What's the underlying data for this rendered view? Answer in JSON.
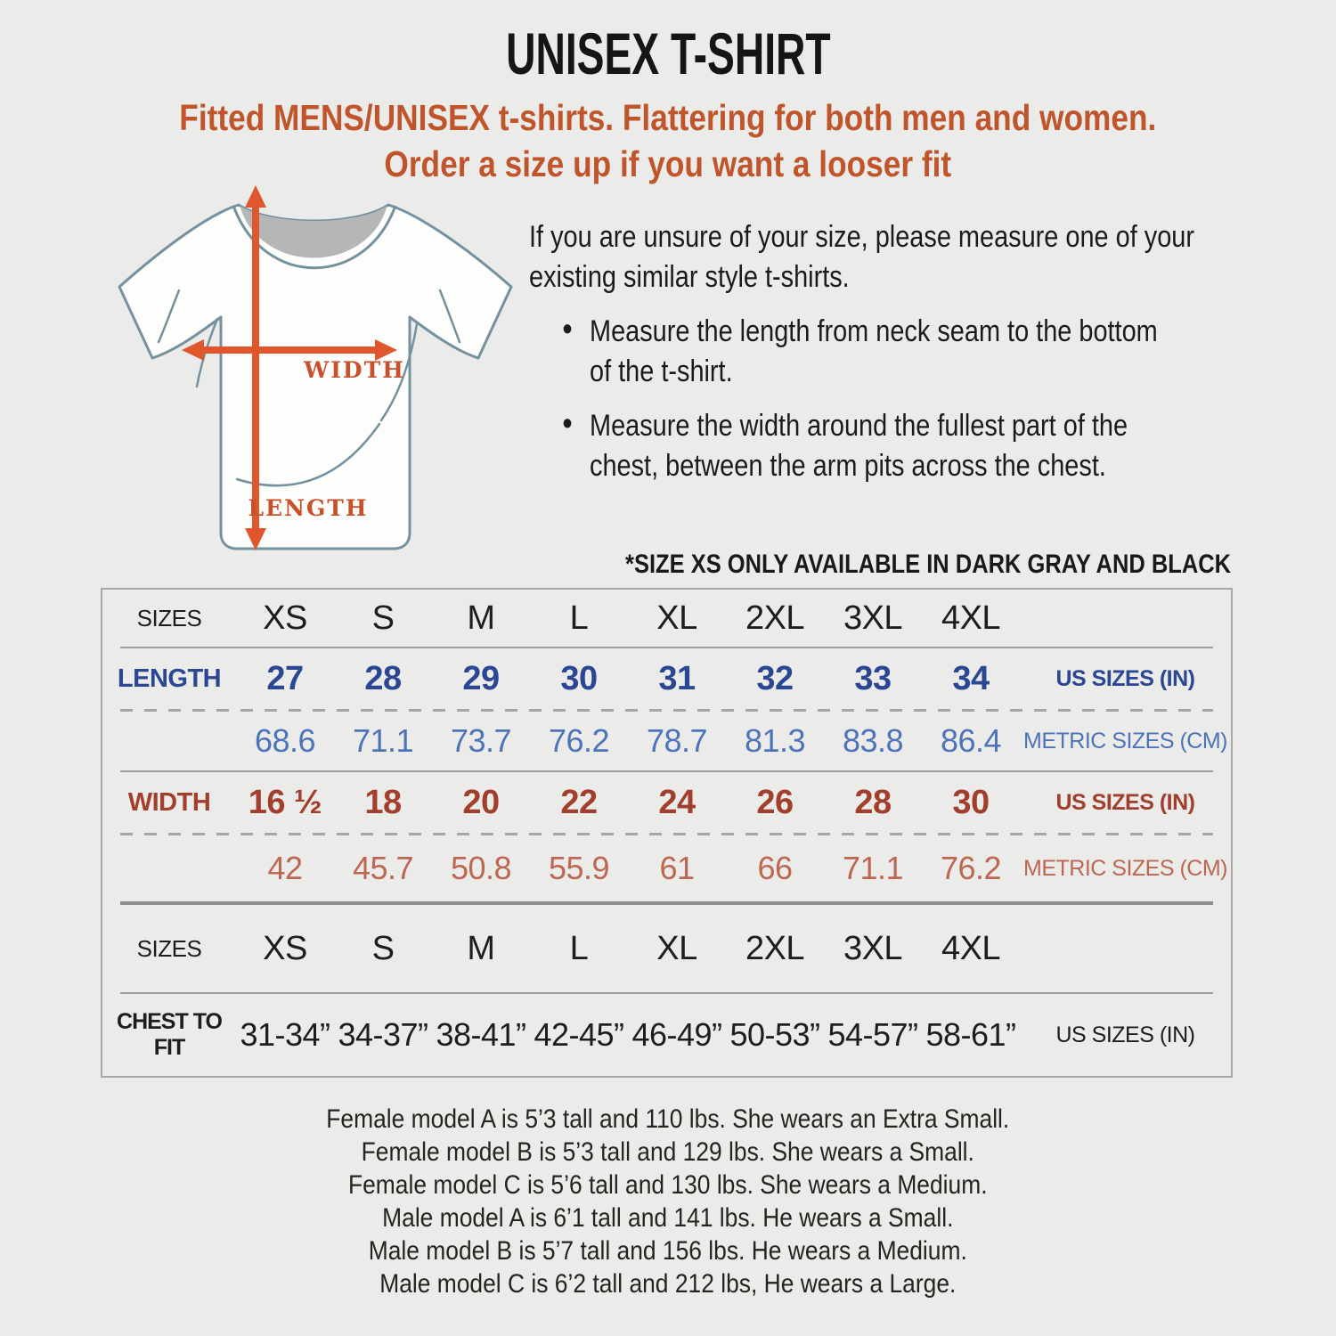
{
  "header": {
    "title": "UNISEX T-SHIRT",
    "subtitle": "Fitted MENS/UNISEX t-shirts. Flattering for both men and women.\nOrder a size up if you want a looser fit"
  },
  "diagram": {
    "width_label": "WIDTH",
    "length_label": "LENGTH"
  },
  "instructions": {
    "intro": "If you are unsure of your size, please measure one of your\nexisting similar style t-shirts.",
    "bullets": [
      "Measure the length from neck seam to the bottom\nof the t-shirt.",
      "Measure the width around the fullest part of the\nchest, between the arm pits across the chest."
    ]
  },
  "note": "*SIZE XS ONLY AVAILABLE IN DARK GRAY AND BLACK",
  "size_table": {
    "sizes_label": "SIZES",
    "length_label": "LENGTH",
    "width_label": "WIDTH",
    "chest_label": "CHEST TO FIT",
    "us_unit_label": "US SIZES (IN)",
    "metric_unit_label": "METRIC SIZES (CM)",
    "sizes": [
      "XS",
      "S",
      "M",
      "L",
      "XL",
      "2XL",
      "3XL",
      "4XL"
    ],
    "length_in": [
      "27",
      "28",
      "29",
      "30",
      "31",
      "32",
      "33",
      "34"
    ],
    "length_cm": [
      "68.6",
      "71.1",
      "73.7",
      "76.2",
      "78.7",
      "81.3",
      "83.8",
      "86.4"
    ],
    "width_in": [
      "16 ½",
      "18",
      "20",
      "22",
      "24",
      "26",
      "28",
      "30"
    ],
    "width_cm": [
      "42",
      "45.7",
      "50.8",
      "55.9",
      "61",
      "66",
      "71.1",
      "76.2"
    ],
    "chest_in": [
      "31-34”",
      "34-37”",
      "38-41”",
      "42-45”",
      "46-49”",
      "50-53”",
      "54-57”",
      "58-61”"
    ]
  },
  "models": [
    "Female model A is 5’3 tall and 110 lbs. She wears an Extra Small.",
    "Female model B is 5’3 tall and 129 lbs. She wears a Small.",
    "Female model C is 5’6 tall and 130 lbs. She wears a Medium.",
    "Male model A is 6’1 tall and 141 lbs. He wears a Small.",
    "Male model B is 5’7 tall and 156 lbs. He wears a Medium.",
    "Male model C is 6’2 tall and 212 lbs, He wears a Large."
  ],
  "colors": {
    "background": "#ebebea",
    "accent_orange": "#c0552b",
    "arrow_orange": "#e0572d",
    "table_blue": "#2b4793",
    "table_blue_light": "#4d74b8",
    "table_red": "#a23f2c",
    "table_red_light": "#bd6752",
    "shirt_outline": "#74929e"
  }
}
